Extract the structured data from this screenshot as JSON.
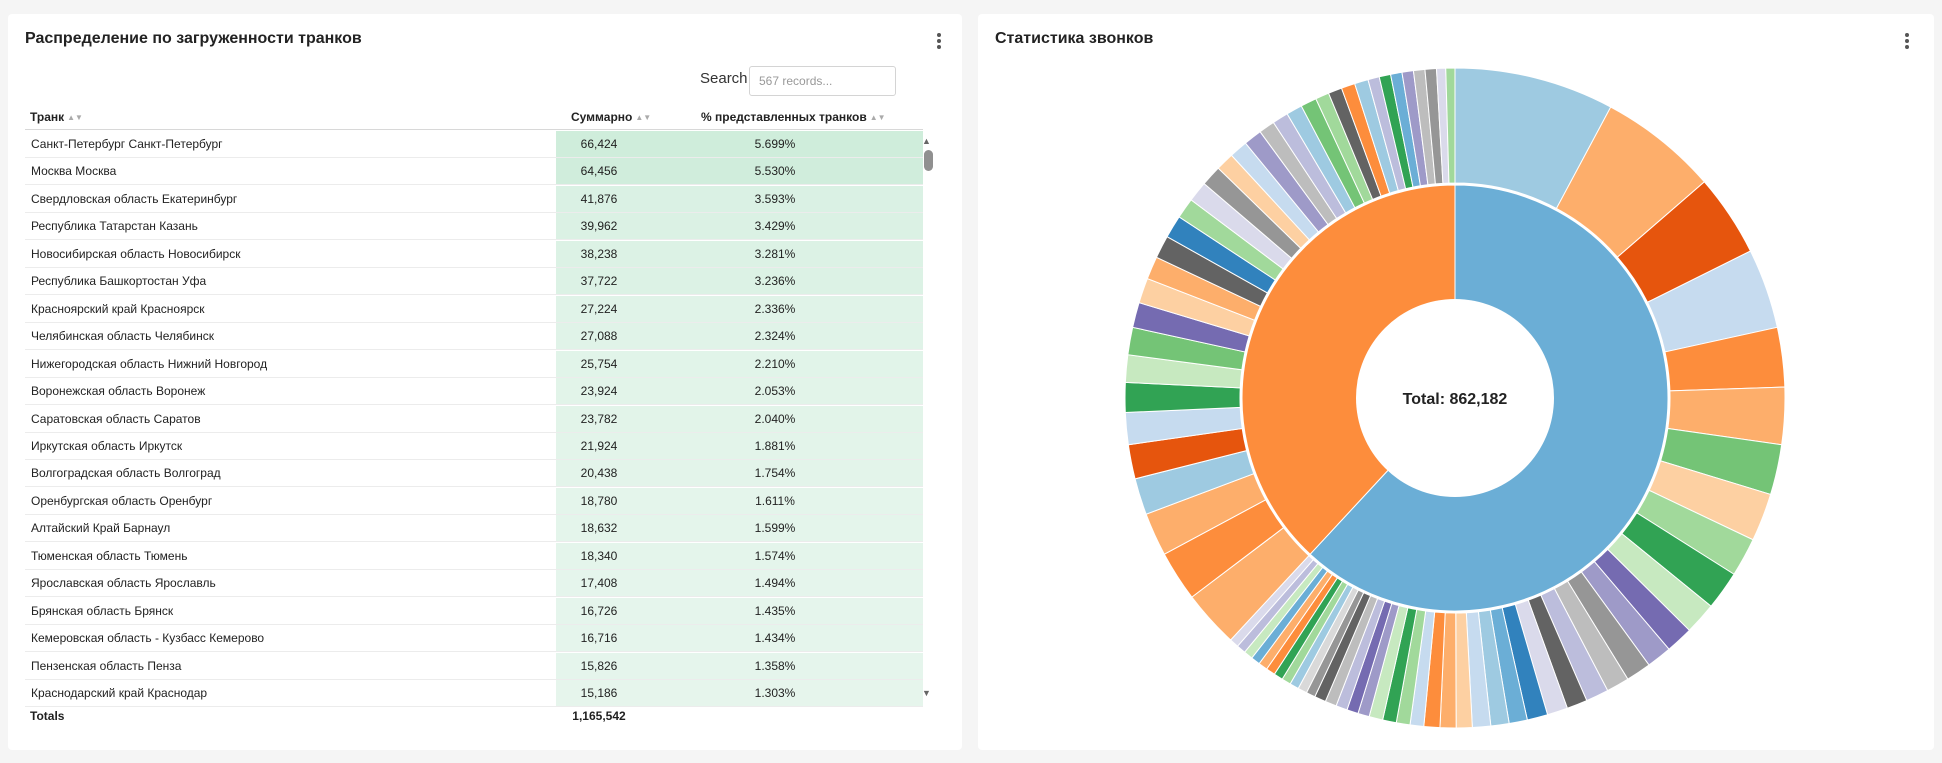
{
  "left_panel": {
    "title": "Распределение по загруженности транков",
    "search_label": "Search",
    "search_placeholder": "567 records...",
    "columns": [
      "Транк",
      "Суммарно",
      "% представленных транков"
    ],
    "rows": [
      {
        "name": "Санкт-Петербург Санкт-Петербург",
        "sum": "66,424",
        "pct": "5.699%",
        "value": 5.699
      },
      {
        "name": "Москва Москва",
        "sum": "64,456",
        "pct": "5.530%",
        "value": 5.53
      },
      {
        "name": "Свердловская область Екатеринбург",
        "sum": "41,876",
        "pct": "3.593%",
        "value": 3.593
      },
      {
        "name": "Республика Татарстан Казань",
        "sum": "39,962",
        "pct": "3.429%",
        "value": 3.429
      },
      {
        "name": "Новосибирская область Новосибирск",
        "sum": "38,238",
        "pct": "3.281%",
        "value": 3.281
      },
      {
        "name": "Республика Башкортостан Уфа",
        "sum": "37,722",
        "pct": "3.236%",
        "value": 3.236
      },
      {
        "name": "Красноярский край Красноярск",
        "sum": "27,224",
        "pct": "2.336%",
        "value": 2.336
      },
      {
        "name": "Челябинская область Челябинск",
        "sum": "27,088",
        "pct": "2.324%",
        "value": 2.324
      },
      {
        "name": "Нижегородская область Нижний Новгород",
        "sum": "25,754",
        "pct": "2.210%",
        "value": 2.21
      },
      {
        "name": "Воронежская область Воронеж",
        "sum": "23,924",
        "pct": "2.053%",
        "value": 2.053
      },
      {
        "name": "Саратовская область Саратов",
        "sum": "23,782",
        "pct": "2.040%",
        "value": 2.04
      },
      {
        "name": "Иркутская область Иркутск",
        "sum": "21,924",
        "pct": "1.881%",
        "value": 1.881
      },
      {
        "name": "Волгоградская область Волгоград",
        "sum": "20,438",
        "pct": "1.754%",
        "value": 1.754
      },
      {
        "name": "Оренбургская область Оренбург",
        "sum": "18,780",
        "pct": "1.611%",
        "value": 1.611
      },
      {
        "name": "Алтайский Край Барнаул",
        "sum": "18,632",
        "pct": "1.599%",
        "value": 1.599
      },
      {
        "name": "Тюменская область Тюмень",
        "sum": "18,340",
        "pct": "1.574%",
        "value": 1.574
      },
      {
        "name": "Ярославская область Ярославль",
        "sum": "17,408",
        "pct": "1.494%",
        "value": 1.494
      },
      {
        "name": "Брянская область Брянск",
        "sum": "16,726",
        "pct": "1.435%",
        "value": 1.435
      },
      {
        "name": "Кемеровская область - Кузбасс Кемерово",
        "sum": "16,716",
        "pct": "1.434%",
        "value": 1.434
      },
      {
        "name": "Пензенская область Пенза",
        "sum": "15,826",
        "pct": "1.358%",
        "value": 1.358
      },
      {
        "name": "Краснодарский край Краснодар",
        "sum": "15,186",
        "pct": "1.303%",
        "value": 1.303
      }
    ],
    "totals_label": "Totals",
    "totals_value": "1,165,542"
  },
  "right_panel": {
    "title": "Статистика звонков",
    "center_label": "Total: 862,182"
  },
  "chart_data": {
    "type": "sunburst",
    "center_label": "Total: 862,182",
    "inner_ring": [
      {
        "share": 0.619,
        "color": "#6baed6"
      },
      {
        "share": 0.381,
        "color": "#fd8d3c"
      }
    ],
    "outer_ring": [
      {
        "share": 0.07,
        "color": "#9ecae1"
      },
      {
        "share": 0.052,
        "color": "#fdae6b"
      },
      {
        "share": 0.036,
        "color": "#e6550d"
      },
      {
        "share": 0.035,
        "color": "#c6dbef"
      },
      {
        "share": 0.026,
        "color": "#fd8d3c"
      },
      {
        "share": 0.025,
        "color": "#fdae6b"
      },
      {
        "share": 0.022,
        "color": "#74c476"
      },
      {
        "share": 0.021,
        "color": "#fdd0a2"
      },
      {
        "share": 0.017,
        "color": "#a1d99b"
      },
      {
        "share": 0.017,
        "color": "#31a354"
      },
      {
        "share": 0.014,
        "color": "#c7e9c0"
      },
      {
        "share": 0.012,
        "color": "#756bb1"
      },
      {
        "share": 0.011,
        "color": "#9e9ac8"
      },
      {
        "share": 0.011,
        "color": "#969696"
      },
      {
        "share": 0.01,
        "color": "#bdbdbd"
      },
      {
        "share": 0.01,
        "color": "#bcbddc"
      },
      {
        "share": 0.009,
        "color": "#636363"
      },
      {
        "share": 0.009,
        "color": "#dadaeb"
      },
      {
        "share": 0.009,
        "color": "#3182bd"
      },
      {
        "share": 0.008,
        "color": "#6baed6"
      },
      {
        "share": 0.008,
        "color": "#9ecae1"
      },
      {
        "share": 0.008,
        "color": "#c6dbef"
      },
      {
        "share": 0.007,
        "color": "#fdd0a2"
      },
      {
        "share": 0.007,
        "color": "#fdae6b"
      },
      {
        "share": 0.007,
        "color": "#fd8d3c"
      },
      {
        "share": 0.006,
        "color": "#c6dbef"
      },
      {
        "share": 0.006,
        "color": "#a1d99b"
      },
      {
        "share": 0.006,
        "color": "#31a354"
      },
      {
        "share": 0.006,
        "color": "#c7e9c0"
      },
      {
        "share": 0.005,
        "color": "#9e9ac8"
      },
      {
        "share": 0.005,
        "color": "#756bb1"
      },
      {
        "share": 0.005,
        "color": "#bcbddc"
      },
      {
        "share": 0.005,
        "color": "#bdbdbd"
      },
      {
        "share": 0.005,
        "color": "#636363"
      },
      {
        "share": 0.004,
        "color": "#969696"
      },
      {
        "share": 0.004,
        "color": "#d9d9d9"
      },
      {
        "share": 0.004,
        "color": "#9ecae1"
      },
      {
        "share": 0.004,
        "color": "#a1d99b"
      },
      {
        "share": 0.004,
        "color": "#31a354"
      },
      {
        "share": 0.004,
        "color": "#fd8d3c"
      },
      {
        "share": 0.004,
        "color": "#fdae6b"
      },
      {
        "share": 0.004,
        "color": "#6baed6"
      },
      {
        "share": 0.004,
        "color": "#c7e9c0"
      },
      {
        "share": 0.004,
        "color": "#bcbddc"
      },
      {
        "share": 0.004,
        "color": "#dadaeb"
      },
      {
        "share": 0.025,
        "color": "#fdae6b"
      },
      {
        "share": 0.022,
        "color": "#fd8d3c"
      },
      {
        "share": 0.019,
        "color": "#fdae6b"
      },
      {
        "share": 0.016,
        "color": "#9ecae1"
      },
      {
        "share": 0.015,
        "color": "#e6550d"
      },
      {
        "share": 0.014,
        "color": "#c6dbef"
      },
      {
        "share": 0.013,
        "color": "#31a354"
      },
      {
        "share": 0.012,
        "color": "#c7e9c0"
      },
      {
        "share": 0.012,
        "color": "#74c476"
      },
      {
        "share": 0.011,
        "color": "#756bb1"
      },
      {
        "share": 0.011,
        "color": "#fdd0a2"
      },
      {
        "share": 0.01,
        "color": "#fdae6b"
      },
      {
        "share": 0.01,
        "color": "#636363"
      },
      {
        "share": 0.01,
        "color": "#3182bd"
      },
      {
        "share": 0.009,
        "color": "#a1d99b"
      },
      {
        "share": 0.009,
        "color": "#dadaeb"
      },
      {
        "share": 0.009,
        "color": "#969696"
      },
      {
        "share": 0.008,
        "color": "#fdd0a2"
      },
      {
        "share": 0.008,
        "color": "#c6dbef"
      },
      {
        "share": 0.008,
        "color": "#9e9ac8"
      },
      {
        "share": 0.007,
        "color": "#bdbdbd"
      },
      {
        "share": 0.007,
        "color": "#bcbddc"
      },
      {
        "share": 0.007,
        "color": "#9ecae1"
      },
      {
        "share": 0.007,
        "color": "#74c476"
      },
      {
        "share": 0.006,
        "color": "#a1d99b"
      },
      {
        "share": 0.006,
        "color": "#636363"
      },
      {
        "share": 0.006,
        "color": "#fd8d3c"
      },
      {
        "share": 0.006,
        "color": "#9ecae1"
      },
      {
        "share": 0.005,
        "color": "#bcbddc"
      },
      {
        "share": 0.005,
        "color": "#31a354"
      },
      {
        "share": 0.005,
        "color": "#6baed6"
      },
      {
        "share": 0.005,
        "color": "#9e9ac8"
      },
      {
        "share": 0.005,
        "color": "#bdbdbd"
      },
      {
        "share": 0.005,
        "color": "#969696"
      },
      {
        "share": 0.004,
        "color": "#dadaeb"
      },
      {
        "share": 0.004,
        "color": "#a1d99b"
      }
    ]
  }
}
